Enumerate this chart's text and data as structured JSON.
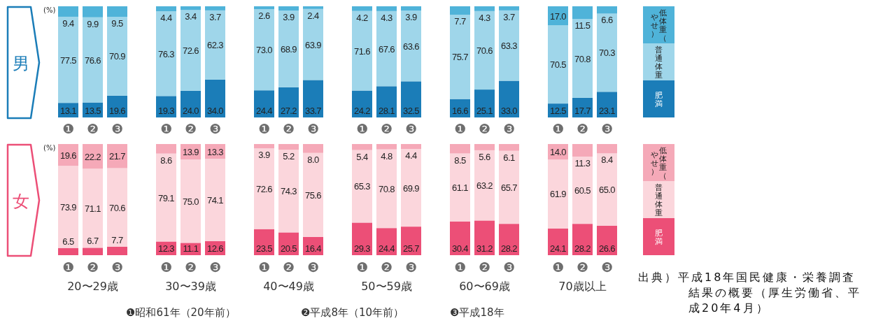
{
  "chart_data": [
    {
      "type": "bar",
      "title": "男",
      "ylabel": "(%)",
      "stacked": true,
      "legend": "right",
      "ylim": [
        0,
        100
      ],
      "categories": [
        "❶",
        "❷",
        "❸",
        "❶",
        "❷",
        "❸",
        "❶",
        "❷",
        "❸",
        "❶",
        "❷",
        "❸",
        "❶",
        "❷",
        "❸",
        "❶",
        "❷",
        "❸"
      ],
      "series": [
        {
          "name": "肥満",
          "color": "#1b7db8",
          "values": [
            13.1,
            13.5,
            19.6,
            19.3,
            24.0,
            34.0,
            24.4,
            27.2,
            33.7,
            24.2,
            28.1,
            32.5,
            16.6,
            25.1,
            33.0,
            12.5,
            17.7,
            23.1
          ],
          "value_labels": [
            "13.1",
            "13.5",
            "19.6",
            "19.3",
            "24.0",
            "34.0",
            "24.4",
            "27.2",
            "33.7",
            "24.2",
            "28.1",
            "32.5",
            "16.6",
            "25.1",
            "33.0",
            "12.5",
            "17.7",
            "23.1"
          ]
        },
        {
          "name": "普通体重",
          "color": "#9fd6ea",
          "values": [
            77.5,
            76.6,
            70.9,
            76.3,
            72.6,
            62.3,
            73.0,
            68.9,
            63.9,
            71.6,
            67.6,
            63.6,
            75.7,
            70.6,
            63.3,
            70.5,
            70.8,
            70.3
          ],
          "value_labels": [
            "77.5",
            "76.6",
            "70.9",
            "76.3",
            "72.6",
            "62.3",
            "73.0",
            "68.9",
            "63.9",
            "71.6",
            "67.6",
            "63.6",
            "75.7",
            "70.6",
            "63.3",
            "70.5",
            "70.8",
            "70.3"
          ]
        },
        {
          "name": "低体重（やせ）",
          "color": "#4fb3d9",
          "values": [
            9.4,
            9.9,
            9.5,
            4.4,
            3.4,
            3.7,
            2.6,
            3.9,
            2.4,
            4.2,
            4.3,
            3.9,
            7.7,
            4.3,
            3.7,
            17.0,
            11.5,
            6.6
          ],
          "value_labels": [
            "9.4",
            "9.9",
            "9.5",
            "4.4",
            "3.4",
            "3.7",
            "2.6",
            "3.9",
            "2.4",
            "4.2",
            "4.3",
            "3.9",
            "7.7",
            "4.3",
            "3.7",
            "17.0",
            "11.5",
            "6.6"
          ]
        }
      ]
    },
    {
      "type": "bar",
      "title": "女",
      "ylabel": "(%)",
      "stacked": true,
      "legend": "right",
      "ylim": [
        0,
        100
      ],
      "categories": [
        "❶",
        "❷",
        "❸",
        "❶",
        "❷",
        "❸",
        "❶",
        "❷",
        "❸",
        "❶",
        "❷",
        "❸",
        "❶",
        "❷",
        "❸",
        "❶",
        "❷",
        "❸"
      ],
      "series": [
        {
          "name": "肥満",
          "color": "#ec4f77",
          "values": [
            6.5,
            6.7,
            7.7,
            12.3,
            11.1,
            12.6,
            23.5,
            20.5,
            16.4,
            29.3,
            24.4,
            25.7,
            30.4,
            31.2,
            28.2,
            24.1,
            28.2,
            26.6
          ],
          "value_labels": [
            "6.5",
            "6.7",
            "7.7",
            "12.3",
            "11.1",
            "12.6",
            "23.5",
            "20.5",
            "16.4",
            "29.3",
            "24.4",
            "25.7",
            "30.4",
            "31.2",
            "28.2",
            "24.1",
            "28.2",
            "26.6"
          ]
        },
        {
          "name": "普通体重",
          "color": "#fbd6dc",
          "values": [
            73.9,
            71.1,
            70.6,
            79.1,
            75.0,
            74.1,
            72.6,
            74.3,
            75.6,
            65.3,
            70.8,
            69.9,
            61.1,
            63.2,
            65.7,
            61.9,
            60.5,
            65.0
          ],
          "value_labels": [
            "73.9",
            "71.1",
            "70.6",
            "79.1",
            "75.0",
            "74.1",
            "72.6",
            "74.3",
            "75.6",
            "65.3",
            "70.8",
            "69.9",
            "61.1",
            "63.2",
            "65.7",
            "61.9",
            "60.5",
            "65.0"
          ]
        },
        {
          "name": "低体重（やせ）",
          "color": "#f5a9b8",
          "values": [
            19.6,
            22.2,
            21.7,
            8.6,
            13.9,
            13.3,
            3.9,
            5.2,
            8.0,
            5.4,
            4.8,
            4.4,
            8.5,
            5.6,
            6.1,
            14.0,
            11.3,
            8.4
          ],
          "value_labels": [
            "19.6",
            "22.2",
            "21.7",
            "8.6",
            "13.9",
            "13.3",
            "3.9",
            "5.2",
            "8.0",
            "5.4",
            "4.8",
            "4.4",
            "8.5",
            "5.6",
            "6.1",
            "14.0",
            "11.3",
            "8.4"
          ]
        }
      ],
      "annotations": [
        "20〜29歳",
        "30〜39歳",
        "40〜49歳",
        "50〜59歳",
        "60〜69歳",
        "70歳以上",
        "❶昭和61年（20年前）",
        "❷平成8年（10年前）",
        "❸平成18年",
        "出典）平成18年国民健康・栄養調査結果の概要（厚生労働省、平成20年4月）"
      ]
    }
  ]
}
